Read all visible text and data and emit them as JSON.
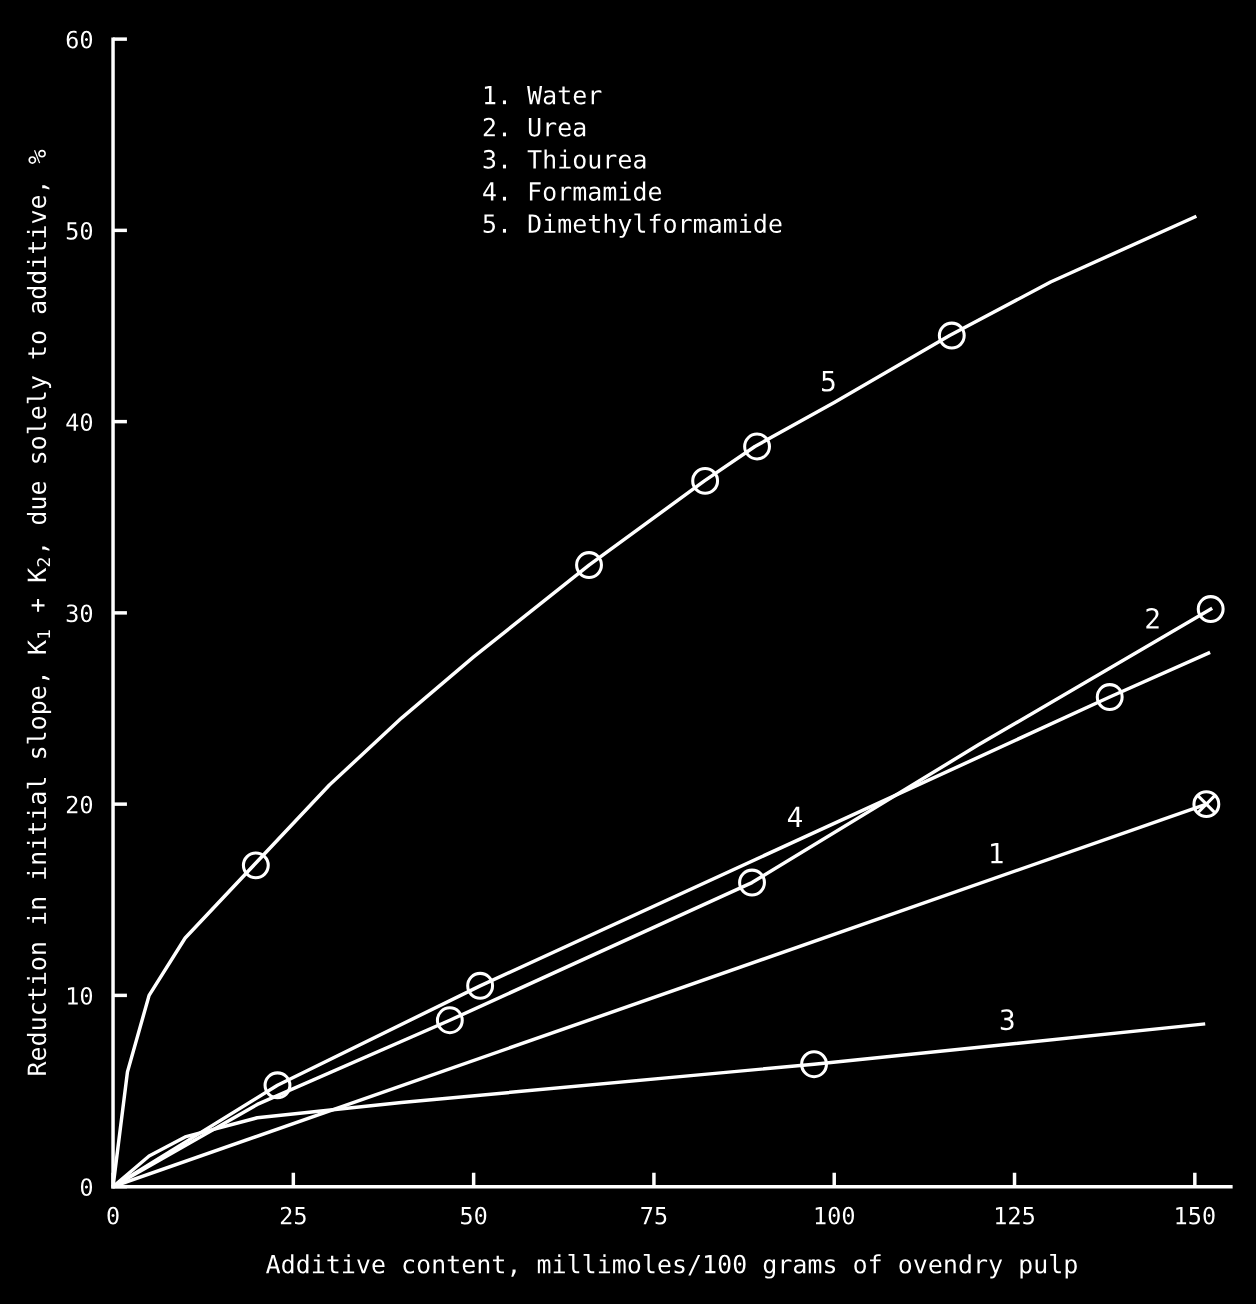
{
  "chart_data": {
    "type": "line",
    "xlabel": "Additive content, millimoles/100 grams of ovendry pulp",
    "ylabel": "Reduction in initial slope, K$_{1}$ + K$_{2}$, due solely to additive, %",
    "xlim": [
      0,
      155
    ],
    "ylim": [
      0,
      60
    ],
    "xticks": [
      0,
      25,
      50,
      75,
      100,
      125,
      150
    ],
    "yticks": [
      0,
      10,
      20,
      30,
      40,
      50,
      60
    ],
    "grid": false,
    "legend": false,
    "series": [
      {
        "name": "5",
        "color": "#ffffff",
        "x": [
          0,
          2,
          5,
          10,
          20,
          30,
          40,
          50,
          66,
          82,
          89,
          100,
          116,
          130,
          150
        ],
        "values": [
          0,
          6,
          10,
          13,
          17,
          21,
          24.5,
          27.7,
          32.5,
          36.9,
          38.7,
          41,
          44.5,
          47.3,
          50.7
        ]
      },
      {
        "type": "scatter",
        "color": "#ffffff",
        "marker": "circle",
        "x": [
          19.8,
          66,
          82.1,
          89.3,
          116.3
        ],
        "values": [
          16.8,
          32.5,
          36.9,
          38.7,
          44.5
        ]
      },
      {
        "name": "2",
        "color": "#ffffff",
        "x": [
          0,
          20,
          46.7,
          88.6,
          120,
          152.2
        ],
        "values": [
          0,
          4.3,
          8.7,
          15.9,
          23.1,
          30.2
        ]
      },
      {
        "type": "scatter",
        "color": "#ffffff",
        "marker": "circle",
        "x": [
          46.7,
          88.6,
          152.2
        ],
        "values": [
          8.7,
          15.9,
          30.2
        ]
      },
      {
        "name": "4",
        "color": "#ffffff",
        "x": [
          0,
          22.8,
          50.9,
          138.2,
          151.9
        ],
        "values": [
          0,
          5.3,
          10.5,
          25.6,
          27.9
        ]
      },
      {
        "type": "scatter",
        "color": "#ffffff",
        "marker": "circle",
        "x": [
          22.8,
          50.9,
          138.2
        ],
        "values": [
          5.3,
          10.5,
          25.6
        ]
      },
      {
        "name": "1",
        "color": "#ffffff",
        "x": [
          0,
          151.6
        ],
        "values": [
          0,
          20.0
        ]
      },
      {
        "type": "scatter",
        "color": "#ffffff",
        "marker": "cross",
        "x": [
          151.6
        ],
        "values": [
          20.0
        ]
      },
      {
        "name": "3",
        "color": "#ffffff",
        "x": [
          0,
          5,
          10,
          20,
          40,
          97.2,
          151.2
        ],
        "values": [
          0,
          1.6,
          2.6,
          3.6,
          4.4,
          6.4,
          8.5
        ]
      },
      {
        "type": "scatter",
        "color": "#ffffff",
        "marker": "circle",
        "x": [
          97.2
        ],
        "values": [
          6.4
        ]
      }
    ],
    "annotations": [
      "1. Water",
      "2. Urea",
      "3. Thiourea",
      "4. Formamide",
      "5. Dimethylformamide"
    ]
  }
}
